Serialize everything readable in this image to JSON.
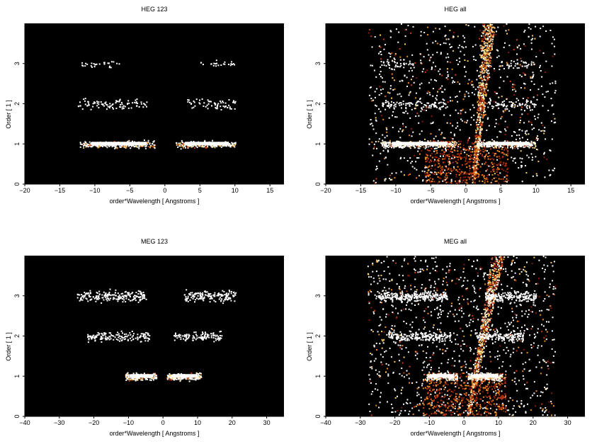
{
  "chart_data": [
    {
      "type": "heatmap",
      "title": "HEG 123",
      "xlabel": "order*Wavelength [ Angstroms ]",
      "ylabel": "Order [ 1 ]",
      "xlim": [
        -20,
        17
      ],
      "ylim": [
        0,
        4
      ],
      "xticks": [
        "−20",
        "−15",
        "−10",
        "−5",
        "0",
        "5",
        "10",
        "15"
      ],
      "xtick_values": [
        -20,
        -15,
        -10,
        -5,
        0,
        5,
        10,
        15
      ],
      "yticks": [
        "0",
        "1",
        "2",
        "3"
      ],
      "ytick_values": [
        0,
        1,
        2,
        3
      ],
      "background": "#000000",
      "bands": [
        {
          "order": 1,
          "x_ranges": [
            [
              -12.2,
              -1.5
            ],
            [
              1.5,
              10
            ]
          ],
          "spread": 0.05,
          "density": 260,
          "core": true
        },
        {
          "order": 2,
          "x_ranges": [
            [
              -12.5,
              -2.5
            ],
            [
              3,
              10
            ]
          ],
          "spread": 0.08,
          "density": 90,
          "core": false
        },
        {
          "order": 3,
          "x_ranges": [
            [
              -12.5,
              -6.5
            ],
            [
              5,
              10
            ]
          ],
          "spread": 0.05,
          "density": 45,
          "core": false
        }
      ],
      "zero_order_streak": false,
      "scatter_density": 0
    },
    {
      "type": "heatmap",
      "title": "HEG all",
      "xlabel": "order*Wavelength [ Angstroms ]",
      "ylabel": "Order [ 1 ]",
      "xlim": [
        -20,
        17
      ],
      "ylim": [
        0,
        4
      ],
      "xticks": [
        "−20",
        "−15",
        "−10",
        "−5",
        "0",
        "5",
        "10",
        "15"
      ],
      "xtick_values": [
        -20,
        -15,
        -10,
        -5,
        0,
        5,
        10,
        15
      ],
      "yticks": [
        "0",
        "1",
        "2",
        "3"
      ],
      "ytick_values": [
        0,
        1,
        2,
        3
      ],
      "background": "#000000",
      "bands": [
        {
          "order": 1,
          "x_ranges": [
            [
              -12.2,
              -1.5
            ],
            [
              1.5,
              10
            ]
          ],
          "spread": 0.05,
          "density": 300,
          "core": true
        },
        {
          "order": 2,
          "x_ranges": [
            [
              -12.5,
              -2.5
            ],
            [
              3,
              10
            ]
          ],
          "spread": 0.08,
          "density": 100,
          "core": false
        },
        {
          "order": 3,
          "x_ranges": [
            [
              -12.5,
              -6.5
            ],
            [
              5,
              10
            ]
          ],
          "spread": 0.05,
          "density": 60,
          "core": false
        }
      ],
      "zero_order_streak": true,
      "streak_slope": 0.18,
      "scatter_density": 900
    },
    {
      "type": "heatmap",
      "title": "MEG 123",
      "xlabel": "order*Wavelength [ Angstroms ]",
      "ylabel": "Order [ 1 ]",
      "xlim": [
        -40,
        35
      ],
      "ylim": [
        0,
        4
      ],
      "xticks": [
        "−40",
        "−30",
        "−20",
        "−10",
        "0",
        "10",
        "20",
        "30"
      ],
      "xtick_values": [
        -40,
        -30,
        -20,
        -10,
        0,
        10,
        20,
        30
      ],
      "yticks": [
        "0",
        "1",
        "2",
        "3"
      ],
      "ytick_values": [
        0,
        1,
        2,
        3
      ],
      "background": "#000000",
      "bands": [
        {
          "order": 1,
          "x_ranges": [
            [
              -11,
              -2
            ],
            [
              1,
              11
            ]
          ],
          "spread": 0.05,
          "density": 220,
          "core": true
        },
        {
          "order": 2,
          "x_ranges": [
            [
              -22,
              -4
            ],
            [
              3,
              17
            ]
          ],
          "spread": 0.07,
          "density": 80,
          "core": false
        },
        {
          "order": 3,
          "x_ranges": [
            [
              -25,
              -5
            ],
            [
              6,
              21
            ]
          ],
          "spread": 0.08,
          "density": 100,
          "core": false
        }
      ],
      "zero_order_streak": false,
      "scatter_density": 0
    },
    {
      "type": "heatmap",
      "title": "MEG all",
      "xlabel": "order*Wavelength [ Angstroms ]",
      "ylabel": "Order [ 1 ]",
      "xlim": [
        -40,
        35
      ],
      "ylim": [
        0,
        4
      ],
      "xticks": [
        "−40",
        "−30",
        "−20",
        "−10",
        "0",
        "10",
        "20",
        "30"
      ],
      "xtick_values": [
        -40,
        -30,
        -20,
        -10,
        0,
        10,
        20,
        30
      ],
      "yticks": [
        "0",
        "1",
        "2",
        "3"
      ],
      "ytick_values": [
        0,
        1,
        2,
        3
      ],
      "background": "#000000",
      "bands": [
        {
          "order": 1,
          "x_ranges": [
            [
              -11,
              -2
            ],
            [
              1,
              11
            ]
          ],
          "spread": 0.05,
          "density": 260,
          "core": true
        },
        {
          "order": 2,
          "x_ranges": [
            [
              -22,
              -4
            ],
            [
              3,
              17
            ]
          ],
          "spread": 0.07,
          "density": 110,
          "core": false
        },
        {
          "order": 3,
          "x_ranges": [
            [
              -25,
              -5
            ],
            [
              6,
              21
            ]
          ],
          "spread": 0.08,
          "density": 140,
          "core": false
        }
      ],
      "zero_order_streak": true,
      "streak_slope": 0.35,
      "scatter_density": 1100
    }
  ]
}
